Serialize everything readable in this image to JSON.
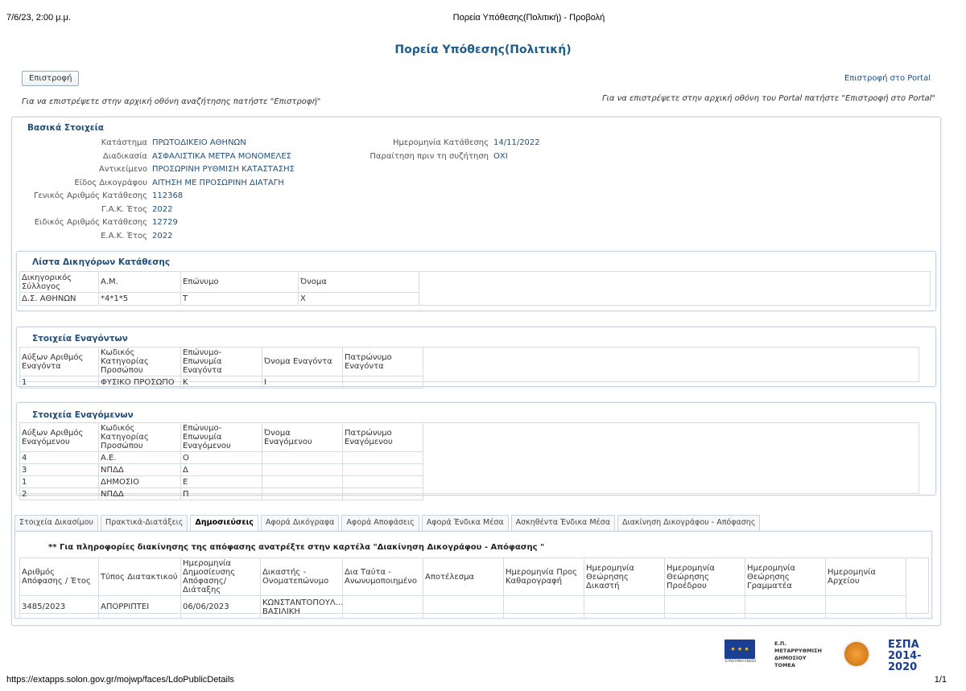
{
  "print_header": {
    "datetime": "7/6/23, 2:00 μ.μ.",
    "title": "Πορεία Υπόθεσης(Πολιτική) - Προβολή"
  },
  "page_title": "Πορεία Υπόθεσης(Πολιτική)",
  "back_button": "Επιστροφή",
  "portal_link": "Επιστροφή στο Portal",
  "back_note": "Για να επιστρέψετε στην αρχική οθόνη αναζήτησης πατήστε \"Επιστροφή\"",
  "portal_note": "Για να επιστρέψετε στην αρχική οθόνη του Portal πατήστε \"Επιστροφή στο Portal\"",
  "basic": {
    "title": "Βασικά Στοιχεία",
    "left": [
      {
        "k": "Κατάστημα",
        "v": "ΠΡΩΤΟΔΙΚΕΙΟ ΑΘΗΝΩΝ"
      },
      {
        "k": "Διαδικασία",
        "v": "ΑΣΦΑΛΙΣΤΙΚΑ ΜΕΤΡΑ ΜΟΝΟΜΕΛΕΣ"
      },
      {
        "k": "Αντικείμενο",
        "v": "ΠΡΟΣΩΡΙΝΗ ΡΥΘΜΙΣΗ ΚΑΤΑΣΤΑΣΗΣ"
      },
      {
        "k": "Είδος Δικογράφου",
        "v": "ΑΙΤΗΣΗ ΜΕ ΠΡΟΣΩΡΙΝΗ ΔΙΑΤΑΓΗ"
      },
      {
        "k": "Γενικός Αριθμός Κατάθεσης",
        "v": "112368"
      },
      {
        "k": "Γ.Α.Κ. Έτος",
        "v": "2022"
      },
      {
        "k": "Ειδικός Αριθμός Κατάθεσης",
        "v": "12729"
      },
      {
        "k": "Ε.Α.Κ. Έτος",
        "v": "2022"
      }
    ],
    "right": [
      {
        "k": "Ημερομηνία Κατάθεσης",
        "v": "14/11/2022"
      },
      {
        "k": "Παραίτηση πριν τη συζήτηση",
        "v": "ΟΧΙ"
      }
    ]
  },
  "lawyers": {
    "title": "Λίστα Δικηγόρων Κατάθεσης",
    "headers": [
      "Δικηγορικός Σύλλογος",
      "Α.Μ.",
      "Επώνυμο",
      "Όνομα"
    ],
    "rows": [
      [
        "Δ.Σ. ΑΘΗΝΩΝ",
        "*4*1*5",
        "Τ",
        "Χ"
      ]
    ]
  },
  "plaintiffs": {
    "title": "Στοιχεία Εναγόντων",
    "headers": [
      "Αύξων Αριθμός Εναγόντα",
      "Κωδικός Κατηγορίας Προσώπου",
      "Επώνυμο-Επωνυμία Εναγόντα",
      "Όνομα Εναγόντα",
      "Πατρώνυμο Εναγόντα"
    ],
    "rows": [
      [
        "1",
        "ΦΥΣΙΚΟ ΠΡΟΣΩΠΟ",
        "Κ",
        "Ι",
        ""
      ]
    ]
  },
  "defendants": {
    "title": "Στοιχεία Εναγόμενων",
    "headers": [
      "Αύξων Αριθμός Εναγόμενου",
      "Κωδικός Κατηγορίας Προσώπου",
      "Επώνυμο-Επωνυμία Εναγόμενου",
      "Όνομα Εναγόμενου",
      "Πατρώνυμο Εναγόμενου"
    ],
    "rows": [
      [
        "4",
        "Α.Ε.",
        "Ο",
        "",
        ""
      ],
      [
        "3",
        "ΝΠΔΔ",
        "Δ",
        "",
        ""
      ],
      [
        "1",
        "ΔΗΜΟΣΙΟ",
        "Ε",
        "",
        ""
      ],
      [
        "2",
        "ΝΠΔΔ",
        "Π",
        "",
        ""
      ]
    ]
  },
  "tabs": [
    {
      "label": "Στοιχεία Δικασίμου",
      "active": false
    },
    {
      "label": "Πρακτικά-Διατάξεις",
      "active": false
    },
    {
      "label": "Δημοσιεύσεις",
      "active": true
    },
    {
      "label": "Αφορά Δικόγραφα",
      "active": false
    },
    {
      "label": "Αφορά Αποφάσεις",
      "active": false
    },
    {
      "label": "Αφορά Ένδικα Μέσα",
      "active": false
    },
    {
      "label": "Ασκηθέντα Ένδικα Μέσα",
      "active": false
    },
    {
      "label": "Διακίνηση Δικογράφου - Απόφασης",
      "active": false
    }
  ],
  "publications": {
    "note": "** Για πληροφορίες διακίνησης της απόφασης ανατρέξτε στην καρτέλα \"Διακίνηση Δικογράφου - Απόφασης \"",
    "headers": [
      "Αριθμός Απόφασης / Έτος",
      "Τύπος Διατακτικού",
      "Ημερομηνία Δημοσίευσης Απόφασης/Διάταξης",
      "Δικαστής - Ονοματεπώνυμο",
      "Δια Ταύτα - Ανωνυμοποιημένο",
      "Αποτέλεσμα",
      "Ημερομηνία Προς Καθαρογραφή",
      "Ημερομηνία Θεώρησης Δικαστή",
      "Ημερομηνία Θεώρησης Προέδρου",
      "Ημερομηνία Θεώρησης Γραμματέα",
      "Ημερομηνία Αρχείου"
    ],
    "rows": [
      [
        "3485/2023",
        "ΑΠΟΡΡΙΠΤΕΙ",
        "06/06/2023",
        "ΚΩΝΣΤΑΝΤΟΠΟΥΛ... ΒΑΣΙΛΙΚΗ",
        "",
        "",
        "",
        "",
        "",
        "",
        ""
      ]
    ]
  },
  "logos": [
    "ΕΥΡΩΠΑΪΚΗ ΕΝΩΣΗ",
    "Ε.Π. ΜΕΤΑΡΡΥΘΜΙΣΗ ΔΗΜΟΣΙΟΥ ΤΟΜΕΑ",
    "ΕΣΠΑ 2014-2020"
  ],
  "print_footer": {
    "url": "https://extapps.solon.gov.gr/mojwp/faces/LdoPublicDetails",
    "page": "1/1"
  }
}
